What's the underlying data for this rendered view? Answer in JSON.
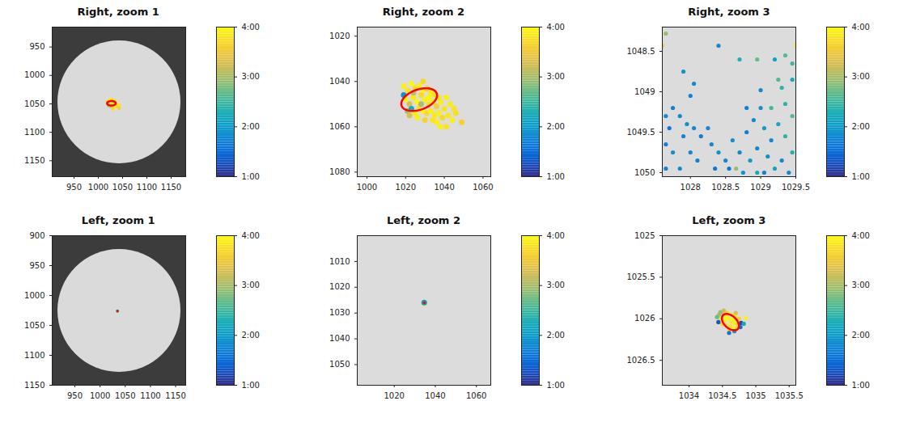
{
  "chart_data": [
    {
      "type": "scatter",
      "title": "Right, zoom 1",
      "xlim": [
        905,
        1180
      ],
      "ylim": [
        1178,
        915
      ],
      "xticks": [
        950,
        1000,
        1050,
        1100,
        1150
      ],
      "yticks": [
        950,
        1000,
        1050,
        1100,
        1150
      ],
      "points": {
        "x": [
          1018,
          1022,
          1025,
          1028,
          1030,
          1033,
          1036,
          1038,
          1040,
          1042,
          1020,
          1024,
          1027,
          1031,
          1035,
          1039,
          1043,
          1026,
          1032,
          1037,
          1029,
          1034,
          1021,
          1044,
          1030
        ],
        "y": [
          1046,
          1044,
          1042,
          1043,
          1045,
          1047,
          1049,
          1052,
          1054,
          1056,
          1050,
          1052,
          1048,
          1051,
          1053,
          1055,
          1058,
          1055,
          1057,
          1050,
          1046,
          1044,
          1053,
          1052,
          1059
        ],
        "time": [
          3.9,
          3.8,
          3.95,
          3.7,
          3.9,
          4.0,
          3.6,
          3.9,
          3.8,
          3.7,
          3.0,
          3.85,
          3.9,
          3.8,
          3.95,
          3.7,
          3.6,
          3.2,
          3.9,
          3.8,
          3.75,
          3.9,
          2.9,
          3.8,
          3.7
        ]
      },
      "ellipse": {
        "cx": 1027,
        "cy": 1049,
        "rx": 9,
        "ry": 4,
        "angle": 0,
        "color": "red"
      },
      "colorbar": {
        "range": [
          1,
          4
        ],
        "ticks": [
          {
            "value": 1,
            "label": "1:00"
          },
          {
            "value": 2,
            "label": "2:00"
          },
          {
            "value": 3,
            "label": "3:00"
          },
          {
            "value": 4,
            "label": "4:00"
          }
        ]
      }
    },
    {
      "type": "scatter",
      "title": "Right, zoom 2",
      "xlim": [
        995,
        1064
      ],
      "ylim": [
        1082,
        1016
      ],
      "xticks": [
        1000,
        1020,
        1040,
        1060
      ],
      "yticks": [
        1020,
        1040,
        1060,
        1080
      ],
      "points": {
        "x": [
          1019,
          1021,
          1023,
          1025,
          1027,
          1029,
          1031,
          1033,
          1035,
          1020,
          1022,
          1024,
          1026,
          1028,
          1030,
          1032,
          1034,
          1036,
          1038,
          1040,
          1021,
          1023,
          1025,
          1027,
          1029,
          1031,
          1033,
          1035,
          1037,
          1039,
          1042,
          1044,
          1046,
          1049,
          1041,
          1036,
          1030,
          1026,
          1043,
          1045,
          1028,
          1024,
          1032,
          1037,
          1041,
          1019,
          1022,
          1034,
          1038,
          1029
        ],
        "y": [
          1042,
          1044,
          1041,
          1043,
          1042,
          1044,
          1043,
          1045,
          1046,
          1048,
          1050,
          1047,
          1049,
          1046,
          1048,
          1050,
          1049,
          1051,
          1049,
          1052,
          1053,
          1052,
          1054,
          1052,
          1053,
          1054,
          1053,
          1055,
          1054,
          1056,
          1055,
          1057,
          1054,
          1058,
          1060,
          1058,
          1057,
          1056,
          1050,
          1052,
          1050,
          1045,
          1047,
          1047,
          1047,
          1046,
          1055,
          1057,
          1060,
          1040
        ],
        "time": [
          3.9,
          3.8,
          4.0,
          3.7,
          3.9,
          4.0,
          3.6,
          3.9,
          3.8,
          3.95,
          3.3,
          3.85,
          4.0,
          3.7,
          3.9,
          3.8,
          3.95,
          3.6,
          3.9,
          3.8,
          2.9,
          2.2,
          3.9,
          3.8,
          3.95,
          3.7,
          3.9,
          3.85,
          3.9,
          3.7,
          3.8,
          3.9,
          3.75,
          3.6,
          3.8,
          3.9,
          3.65,
          3.9,
          3.85,
          3.8,
          3.0,
          3.1,
          3.95,
          3.8,
          3.9,
          1.9,
          3.3,
          3.8,
          3.9,
          3.7
        ]
      },
      "ellipse": {
        "cx": 1027,
        "cy": 1048,
        "rx": 9.5,
        "ry": 4.5,
        "angle": -15,
        "color": "red"
      },
      "colorbar": {
        "range": [
          1,
          4
        ],
        "ticks": [
          {
            "value": 1,
            "label": "1:00"
          },
          {
            "value": 2,
            "label": "2:00"
          },
          {
            "value": 3,
            "label": "3:00"
          },
          {
            "value": 4,
            "label": "4:00"
          }
        ]
      }
    },
    {
      "type": "scatter",
      "title": "Right, zoom 3",
      "xlim": [
        1027.6,
        1029.5
      ],
      "ylim": [
        1050.05,
        1048.2
      ],
      "xticks": [
        1028,
        1028.5,
        1029,
        1029.5
      ],
      "yticks": [
        1048.5,
        1049,
        1049.5,
        1050
      ],
      "points": {
        "x": [
          1027.65,
          1027.6,
          1028.4,
          1029.5,
          1028.7,
          1027.9,
          1028.95,
          1029.2,
          1029.35,
          1029.45,
          1028.0,
          1028.05,
          1029.25,
          1029.0,
          1029.3,
          1029.45,
          1027.75,
          1027.65,
          1027.85,
          1027.7,
          1027.95,
          1028.05,
          1028.15,
          1027.9,
          1027.65,
          1027.75,
          1028.0,
          1028.1,
          1028.3,
          1028.4,
          1028.5,
          1028.35,
          1027.65,
          1027.85,
          1028.25,
          1028.6,
          1028.8,
          1028.9,
          1029.0,
          1029.05,
          1029.15,
          1029.25,
          1029.35,
          1029.45,
          1028.7,
          1028.85,
          1028.95,
          1029.1,
          1029.2,
          1029.3,
          1029.45,
          1029.4,
          1028.65,
          1028.75,
          1029.05,
          1028.55,
          1029.15,
          1029.35,
          1028.8,
          1028.95
        ],
        "y": [
          1048.28,
          1048.43,
          1048.43,
          1048.43,
          1048.6,
          1048.75,
          1048.6,
          1048.6,
          1048.55,
          1048.65,
          1049.05,
          1048.9,
          1048.85,
          1048.98,
          1048.95,
          1048.85,
          1049.2,
          1049.3,
          1049.3,
          1049.45,
          1049.4,
          1049.45,
          1049.55,
          1049.55,
          1049.65,
          1049.75,
          1049.75,
          1049.85,
          1049.65,
          1049.75,
          1049.85,
          1049.95,
          1049.95,
          1049.95,
          1049.45,
          1049.6,
          1049.5,
          1049.35,
          1049.2,
          1049.45,
          1049.6,
          1049.4,
          1049.55,
          1049.3,
          1049.75,
          1049.85,
          1049.7,
          1049.8,
          1049.95,
          1049.85,
          1049.75,
          1050.0,
          1049.95,
          1050.0,
          1050.0,
          1049.95,
          1049.2,
          1049.15,
          1049.2,
          1050.0
        ],
        "time": [
          2.9,
          3.5,
          1.8,
          3.8,
          2.3,
          1.9,
          2.7,
          2.1,
          2.6,
          2.5,
          1.7,
          1.8,
          2.6,
          1.8,
          2.4,
          2.2,
          1.7,
          1.8,
          1.8,
          1.6,
          1.9,
          1.8,
          1.7,
          1.8,
          1.7,
          1.9,
          1.8,
          1.7,
          1.8,
          1.9,
          1.8,
          1.6,
          1.7,
          1.8,
          1.8,
          1.9,
          1.7,
          1.8,
          1.9,
          2.0,
          1.8,
          2.2,
          2.4,
          2.6,
          1.8,
          2.0,
          1.8,
          1.9,
          2.1,
          1.8,
          2.3,
          1.8,
          2.9,
          1.9,
          1.7,
          1.6,
          2.5,
          2.4,
          1.7,
          2.2
        ]
      },
      "colorbar": {
        "range": [
          1,
          4
        ],
        "ticks": [
          {
            "value": 1,
            "label": "1:00"
          },
          {
            "value": 2,
            "label": "2:00"
          },
          {
            "value": 3,
            "label": "3:00"
          },
          {
            "value": 4,
            "label": "4:00"
          }
        ]
      }
    },
    {
      "type": "scatter",
      "title": "Left, zoom 1",
      "xlim": [
        905,
        1170
      ],
      "ylim": [
        1150,
        900
      ],
      "xticks": [
        950,
        1000,
        1050,
        1100,
        1150
      ],
      "yticks": [
        900,
        950,
        1000,
        1050,
        1100,
        1150
      ],
      "points": {
        "x": [
          1034.5,
          1034.7,
          1034.6
        ],
        "y": [
          1026,
          1026.1,
          1025.95
        ],
        "time": [
          3.8,
          3.9,
          2.0
        ]
      },
      "ellipse": {
        "cx": 1034.62,
        "cy": 1026.04,
        "rx": 0.14,
        "ry": 0.08,
        "angle": 30,
        "color": "red"
      },
      "colorbar": {
        "range": [
          1,
          4
        ],
        "ticks": [
          {
            "value": 1,
            "label": "1:00"
          },
          {
            "value": 2,
            "label": "2:00"
          },
          {
            "value": 3,
            "label": "3:00"
          },
          {
            "value": 4,
            "label": "4:00"
          }
        ]
      }
    },
    {
      "type": "scatter",
      "title": "Left, zoom 2",
      "xlim": [
        1002,
        1067
      ],
      "ylim": [
        1058,
        1000
      ],
      "xticks": [
        1020,
        1040,
        1060
      ],
      "yticks": [
        1010,
        1020,
        1030,
        1040,
        1050
      ],
      "points": {
        "x": [
          1034.5,
          1034.7,
          1034.6
        ],
        "y": [
          1026,
          1026.1,
          1025.95
        ],
        "time": [
          3.8,
          3.9,
          2.0
        ]
      },
      "ellipse": {
        "cx": 1034.62,
        "cy": 1026.04,
        "rx": 0.14,
        "ry": 0.08,
        "angle": 30,
        "color": "red"
      },
      "colorbar": {
        "range": [
          1,
          4
        ],
        "ticks": [
          {
            "value": 1,
            "label": "1:00"
          },
          {
            "value": 2,
            "label": "2:00"
          },
          {
            "value": 3,
            "label": "3:00"
          },
          {
            "value": 4,
            "label": "4:00"
          }
        ]
      }
    },
    {
      "type": "scatter",
      "title": "Left, zoom 3",
      "xlim": [
        1033.6,
        1035.6
      ],
      "ylim": [
        1026.8,
        1025
      ],
      "xticks": [
        1034,
        1034.5,
        1035,
        1035.5
      ],
      "yticks": [
        1025,
        1025.5,
        1026,
        1026.5
      ],
      "points": {
        "x": [
          1034.45,
          1034.5,
          1034.55,
          1034.6,
          1034.65,
          1034.7,
          1034.75,
          1034.48,
          1034.53,
          1034.58,
          1034.63,
          1034.68,
          1034.73,
          1034.5,
          1034.56,
          1034.62,
          1034.67,
          1034.72,
          1034.6,
          1034.55,
          1034.65,
          1034.42,
          1034.44,
          1034.78,
          1034.77,
          1034.82,
          1034.85,
          1034.52,
          1034.68,
          1034.6,
          1034.47,
          1034.7
        ],
        "y": [
          1025.95,
          1025.93,
          1025.92,
          1025.94,
          1025.96,
          1025.98,
          1026.0,
          1026.0,
          1026.02,
          1026.0,
          1026.03,
          1026.05,
          1026.07,
          1026.06,
          1026.08,
          1026.09,
          1026.11,
          1026.12,
          1026.13,
          1025.97,
          1026.0,
          1025.98,
          1026.04,
          1026.05,
          1026.1,
          1026.06,
          1025.99,
          1025.9,
          1026.15,
          1026.17,
          1025.92,
          1025.93
        ],
        "time": [
          3.0,
          3.4,
          3.7,
          3.9,
          3.8,
          3.9,
          3.6,
          3.8,
          3.9,
          4.0,
          3.85,
          3.9,
          3.7,
          3.75,
          3.9,
          3.8,
          3.95,
          3.6,
          3.7,
          3.9,
          4.0,
          2.7,
          1.3,
          1.2,
          1.5,
          2.2,
          3.9,
          3.2,
          2.0,
          1.6,
          2.9,
          3.3
        ]
      },
      "ellipse": {
        "cx": 1034.62,
        "cy": 1026.04,
        "rx": 0.14,
        "ry": 0.08,
        "angle": 30,
        "color": "red"
      },
      "colorbar": {
        "range": [
          1,
          4
        ],
        "ticks": [
          {
            "value": 1,
            "label": "1:00"
          },
          {
            "value": 2,
            "label": "2:00"
          },
          {
            "value": 3,
            "label": "3:00"
          },
          {
            "value": 4,
            "label": "4:00"
          }
        ]
      }
    }
  ]
}
